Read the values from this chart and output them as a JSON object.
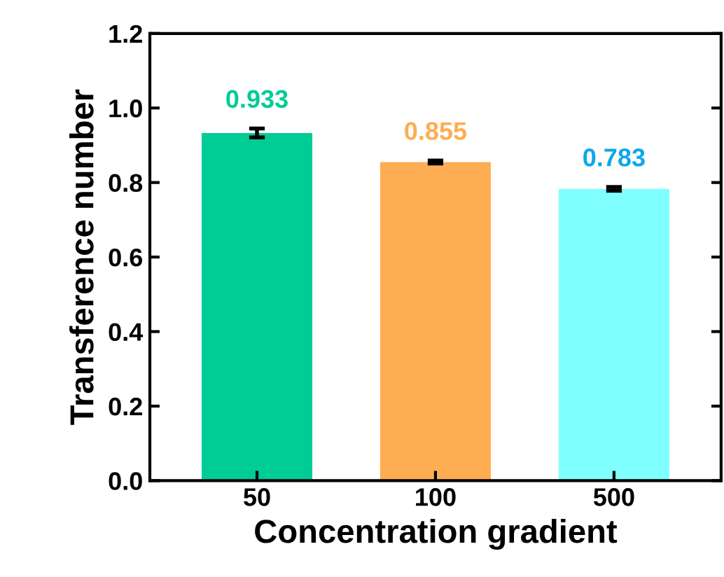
{
  "chart_data": {
    "type": "bar",
    "xlabel": "Concentration gradient",
    "ylabel": "Transference number",
    "categories": [
      "50",
      "100",
      "500"
    ],
    "values": [
      0.933,
      0.855,
      0.783
    ],
    "errors": [
      0.012,
      0.004,
      0.005
    ],
    "colors": [
      "#00cc96",
      "#ffad52",
      "#80ffff"
    ],
    "data_labels": true,
    "ylim": [
      0,
      1.2
    ],
    "yticks": [
      {
        "value": 0,
        "label": "0.0"
      },
      0.2,
      0.4,
      0.6,
      0.8,
      {
        "value": 1,
        "label": "1.0"
      },
      1.2
    ],
    "grid": false,
    "legend": false
  }
}
